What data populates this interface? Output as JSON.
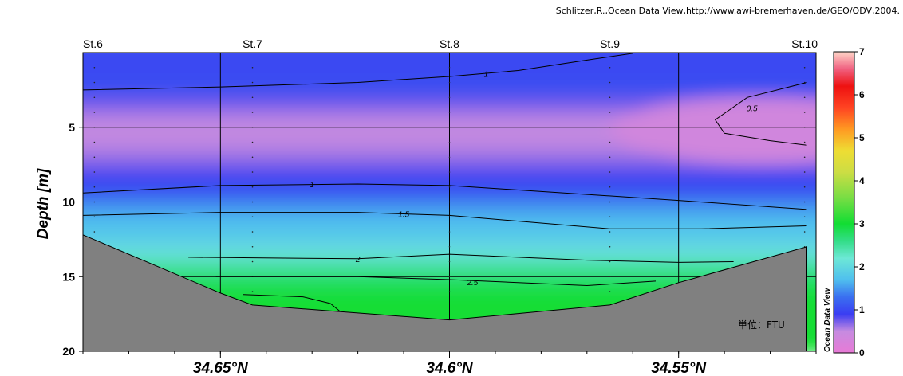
{
  "credit": "Schlitzer,R.,Ocean Data View,http://www.awi-bremerhaven.de/GEO/ODV,2004.",
  "unit_label": "単位：FTU",
  "watermark": "Ocean Data View",
  "chart_data": {
    "type": "heatmap",
    "title": "",
    "xlabel": "",
    "ylabel": "Depth [m]",
    "xlim": [
      34.68,
      34.52
    ],
    "ylim": [
      20,
      0
    ],
    "x_ticks": [
      {
        "value": 34.65,
        "label": "34.65°N"
      },
      {
        "value": 34.6,
        "label": "34.6°N"
      },
      {
        "value": 34.55,
        "label": "34.55°N"
      }
    ],
    "y_ticks": [
      {
        "value": 5,
        "label": "5"
      },
      {
        "value": 10,
        "label": "10"
      },
      {
        "value": 15,
        "label": "15"
      },
      {
        "value": 20,
        "label": "20"
      }
    ],
    "grid": true,
    "stations": [
      {
        "name": "St.6",
        "lat": 34.6775
      },
      {
        "name": "St.7",
        "lat": 34.643
      },
      {
        "name": "St.8",
        "lat": 34.6
      },
      {
        "name": "St.9",
        "lat": 34.565
      },
      {
        "name": "St.10",
        "lat": 34.5225
      }
    ],
    "bottom_profile": [
      [
        34.68,
        12.2
      ],
      [
        34.65,
        16.1
      ],
      [
        34.643,
        16.9
      ],
      [
        34.6,
        17.9
      ],
      [
        34.565,
        16.9
      ],
      [
        34.55,
        15.4
      ],
      [
        34.522,
        13.0
      ]
    ],
    "colorbar": {
      "min": 0,
      "max": 7,
      "ticks": [
        "0",
        "1",
        "2",
        "3",
        "4",
        "5",
        "6",
        "7"
      ],
      "stops": [
        {
          "value": 0,
          "color": "#e87ad6"
        },
        {
          "value": 0.5,
          "color": "#c68be0"
        },
        {
          "value": 0.9,
          "color": "#3a3df2"
        },
        {
          "value": 1.3,
          "color": "#3a6ff0"
        },
        {
          "value": 1.7,
          "color": "#4fbfee"
        },
        {
          "value": 2.2,
          "color": "#6de8d6"
        },
        {
          "value": 2.6,
          "color": "#33dd88"
        },
        {
          "value": 3.0,
          "color": "#11dd33"
        },
        {
          "value": 3.6,
          "color": "#77dd44"
        },
        {
          "value": 4.2,
          "color": "#ccdd44"
        },
        {
          "value": 4.7,
          "color": "#eedd33"
        },
        {
          "value": 5.2,
          "color": "#ff9922"
        },
        {
          "value": 5.7,
          "color": "#ff4422"
        },
        {
          "value": 6.2,
          "color": "#ee1111"
        },
        {
          "value": 6.6,
          "color": "#f06080"
        },
        {
          "value": 7.0,
          "color": "#ffd6c8"
        }
      ]
    },
    "contours": [
      {
        "level": "0.5",
        "label": "0.5",
        "points": [
          [
            34.522,
            2.0
          ],
          [
            34.535,
            3.0
          ],
          [
            34.542,
            4.5
          ],
          [
            34.54,
            5.4
          ],
          [
            34.53,
            5.9
          ],
          [
            34.522,
            6.2
          ]
        ],
        "label_at": [
          34.534,
          3.7
        ]
      },
      {
        "level": "1",
        "label": "1",
        "points": [
          [
            34.68,
            2.5
          ],
          [
            34.65,
            2.3
          ],
          [
            34.62,
            2.0
          ],
          [
            34.6,
            1.6
          ],
          [
            34.585,
            1.2
          ],
          [
            34.57,
            0.5
          ],
          [
            34.56,
            0.05
          ]
        ],
        "label_at": [
          34.592,
          1.4
        ]
      },
      {
        "level": "1",
        "label": "1",
        "points": [
          [
            34.68,
            9.4
          ],
          [
            34.65,
            8.9
          ],
          [
            34.62,
            8.8
          ],
          [
            34.6,
            8.9
          ],
          [
            34.57,
            9.5
          ],
          [
            34.55,
            9.9
          ],
          [
            34.522,
            10.5
          ]
        ],
        "label_at": [
          34.63,
          8.8
        ]
      },
      {
        "level": "1.5",
        "label": "1.5",
        "points": [
          [
            34.68,
            10.9
          ],
          [
            34.65,
            10.7
          ],
          [
            34.62,
            10.7
          ],
          [
            34.6,
            10.9
          ],
          [
            34.565,
            11.8
          ],
          [
            34.545,
            11.8
          ],
          [
            34.522,
            11.6
          ]
        ],
        "label_at": [
          34.61,
          10.8
        ]
      },
      {
        "level": "2",
        "label": "2",
        "points": [
          [
            34.657,
            13.7
          ],
          [
            34.62,
            13.8
          ],
          [
            34.6,
            13.5
          ],
          [
            34.57,
            13.9
          ],
          [
            34.55,
            14.05
          ],
          [
            34.538,
            14.0
          ]
        ],
        "label_at": [
          34.62,
          13.8
        ]
      },
      {
        "level": "2.5",
        "label": "2.5",
        "points": [
          [
            34.651,
            15.0
          ],
          [
            34.62,
            15.0
          ],
          [
            34.6,
            15.2
          ],
          [
            34.57,
            15.6
          ],
          [
            34.555,
            15.3
          ]
        ],
        "label_at": [
          34.595,
          15.35
        ]
      },
      {
        "level": "3",
        "label": "",
        "points": [
          [
            34.645,
            16.2
          ],
          [
            34.632,
            16.35
          ],
          [
            34.626,
            16.8
          ],
          [
            34.624,
            17.3
          ]
        ],
        "label_at": null
      }
    ],
    "data_points_depths": [
      1,
      2,
      3,
      4,
      5,
      6,
      7,
      8,
      9,
      10,
      11,
      12,
      13,
      14,
      15,
      16
    ]
  }
}
